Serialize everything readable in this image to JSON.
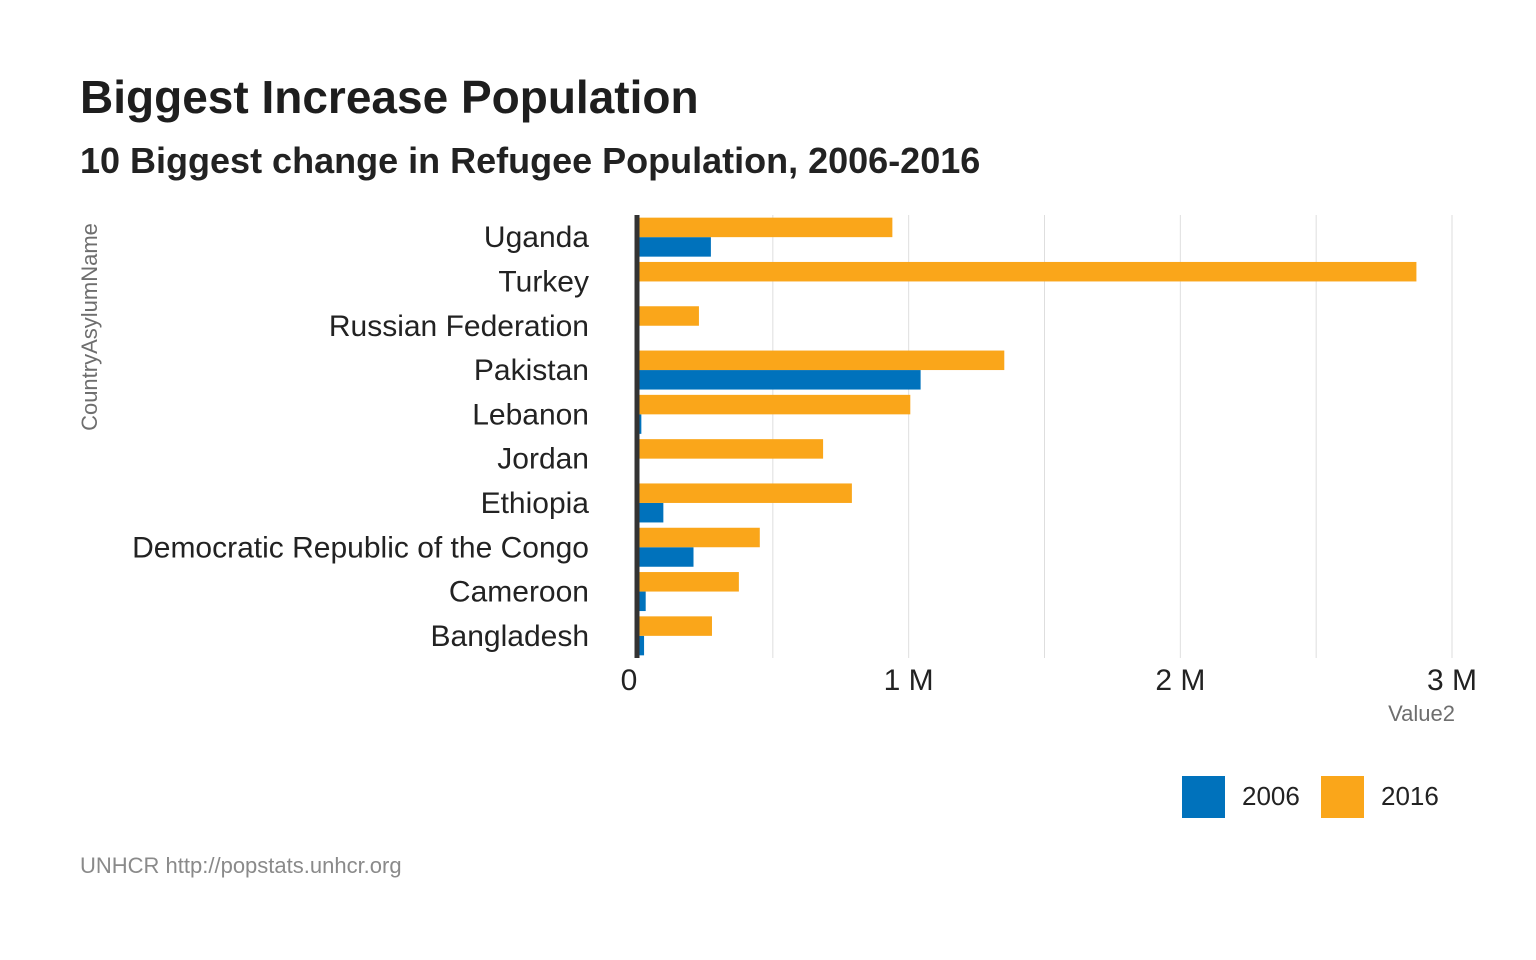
{
  "chart_data": {
    "type": "bar",
    "orientation": "horizontal",
    "title": "Biggest Increase Population",
    "subtitle": "10 Biggest change in Refugee Population, 2006-2016",
    "caption": "UNHCR http://popstats.unhcr.org",
    "xlabel": "Value2",
    "ylabel": "CountryAsylumName",
    "xlim": [
      0,
      3000000
    ],
    "x_ticks": [
      {
        "value": 0,
        "label": "0"
      },
      {
        "value": 1000000,
        "label": "1 M"
      },
      {
        "value": 2000000,
        "label": "2 M"
      },
      {
        "value": 3000000,
        "label": "3 M"
      }
    ],
    "grid": true,
    "legend_position": "bottom-right",
    "categories": [
      "Uganda",
      "Turkey",
      "Russian Federation",
      "Pakistan",
      "Lebanon",
      "Jordan",
      "Ethiopia",
      "Democratic Republic of the Congo",
      "Cameroon",
      "Bangladesh"
    ],
    "series": [
      {
        "name": "2006",
        "color": "#0072bc",
        "values": [
          272000,
          3000,
          1000,
          1044000,
          16000,
          1000,
          97000,
          208000,
          32000,
          26000
        ]
      },
      {
        "name": "2016",
        "color": "#faa61a",
        "values": [
          940000,
          2869000,
          228000,
          1352000,
          1006000,
          685000,
          791000,
          452000,
          375000,
          276000
        ]
      }
    ]
  }
}
